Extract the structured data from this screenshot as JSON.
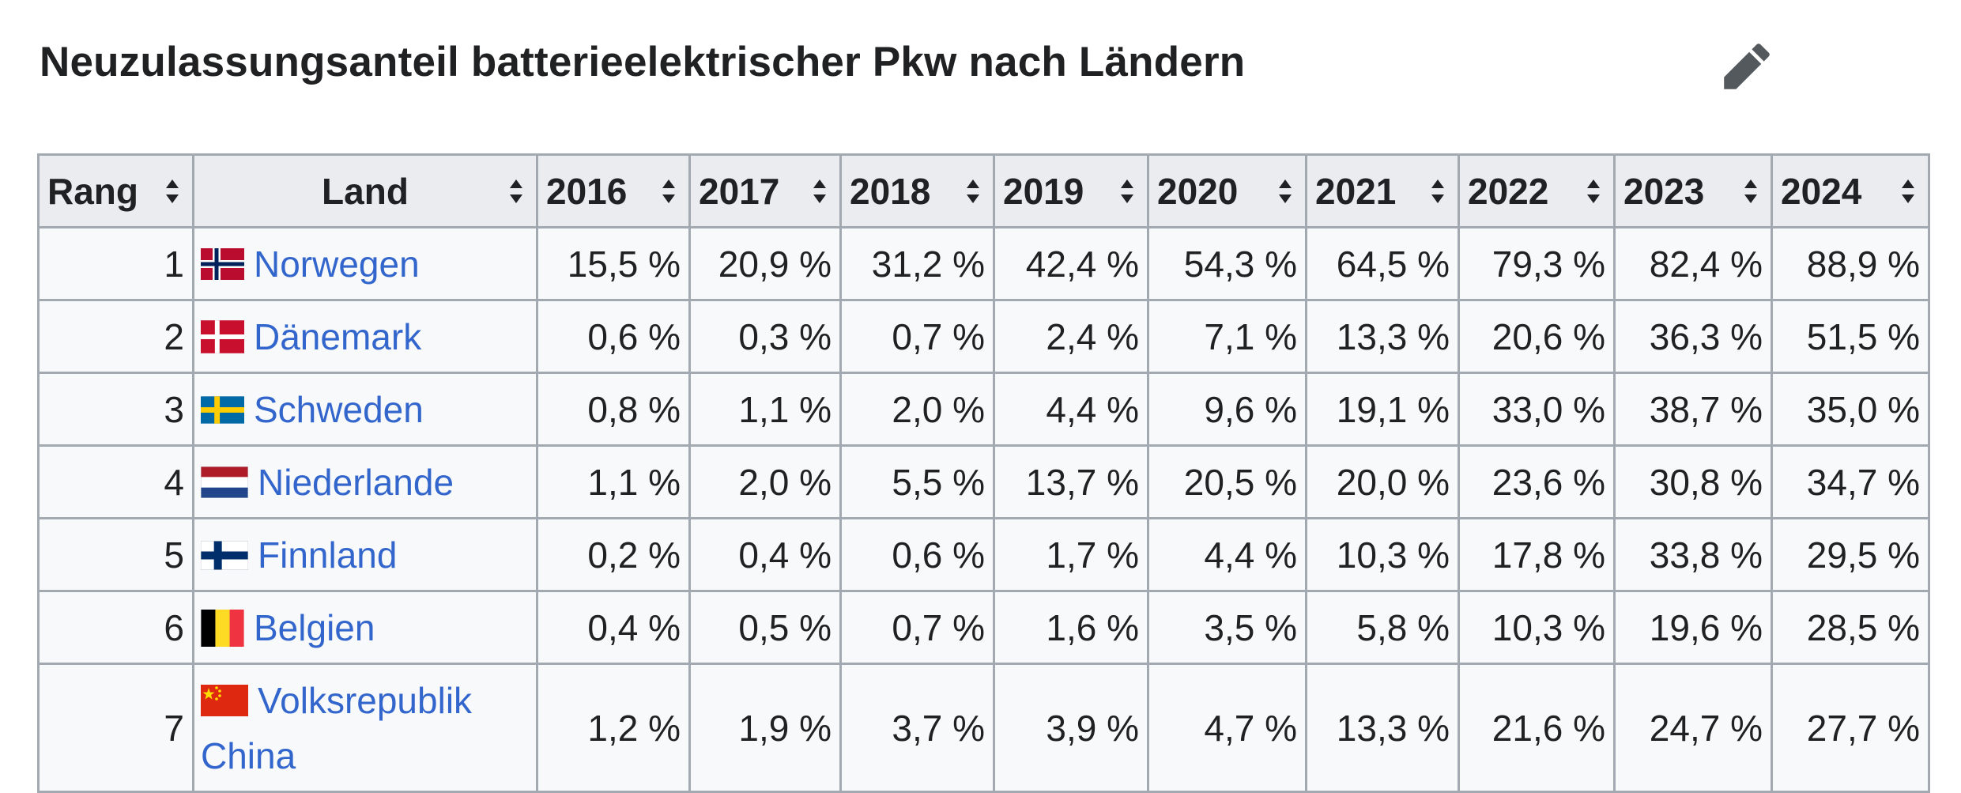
{
  "title": "Neuzulassungsanteil batterieelektrischer Pkw nach Ländern",
  "colors": {
    "link": "#3366cc",
    "header_bg": "#eaecf0",
    "cell_bg": "#f8f9fa",
    "border": "#a2a9b1"
  },
  "icons": {
    "edit": "pencil-icon",
    "sort": "sort-arrows-icon"
  },
  "table": {
    "headers": [
      "Rang",
      "Land",
      "2016",
      "2017",
      "2018",
      "2019",
      "2020",
      "2021",
      "2022",
      "2023",
      "2024"
    ],
    "rows": [
      {
        "rank": "1",
        "country": "Norwegen",
        "flag": "norway",
        "values": [
          "15,5 %",
          "20,9 %",
          "31,2 %",
          "42,4 %",
          "54,3 %",
          "64,5 %",
          "79,3 %",
          "82,4 %",
          "88,9 %"
        ]
      },
      {
        "rank": "2",
        "country": "Dänemark",
        "flag": "denmark",
        "values": [
          "0,6 %",
          "0,3 %",
          "0,7 %",
          "2,4 %",
          "7,1 %",
          "13,3 %",
          "20,6 %",
          "36,3 %",
          "51,5 %"
        ]
      },
      {
        "rank": "3",
        "country": "Schweden",
        "flag": "sweden",
        "values": [
          "0,8 %",
          "1,1 %",
          "2,0 %",
          "4,4 %",
          "9,6 %",
          "19,1 %",
          "33,0 %",
          "38,7 %",
          "35,0 %"
        ]
      },
      {
        "rank": "4",
        "country": "Niederlande",
        "flag": "netherlands",
        "values": [
          "1,1 %",
          "2,0 %",
          "5,5 %",
          "13,7 %",
          "20,5 %",
          "20,0 %",
          "23,6 %",
          "30,8 %",
          "34,7 %"
        ]
      },
      {
        "rank": "5",
        "country": "Finnland",
        "flag": "finland",
        "values": [
          "0,2 %",
          "0,4 %",
          "0,6 %",
          "1,7 %",
          "4,4 %",
          "10,3 %",
          "17,8 %",
          "33,8 %",
          "29,5 %"
        ]
      },
      {
        "rank": "6",
        "country": "Belgien",
        "flag": "belgium",
        "values": [
          "0,4 %",
          "0,5 %",
          "0,7 %",
          "1,6 %",
          "3,5 %",
          "5,8 %",
          "10,3 %",
          "19,6 %",
          "28,5 %"
        ]
      },
      {
        "rank": "7",
        "country": "Volksrepublik China",
        "flag": "china",
        "values": [
          "1,2 %",
          "1,9 %",
          "3,7 %",
          "3,9 %",
          "4,7 %",
          "13,3 %",
          "21,6 %",
          "24,7 %",
          "27,7 %"
        ]
      }
    ]
  }
}
